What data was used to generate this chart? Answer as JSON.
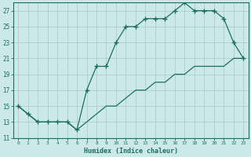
{
  "xlabel": "Humidex (Indice chaleur)",
  "x_upper": [
    0,
    1,
    2,
    3,
    4,
    5,
    6,
    7,
    8,
    9,
    10,
    11,
    12,
    13,
    14,
    15,
    16,
    17,
    18,
    19,
    20,
    21,
    22,
    23
  ],
  "y_upper": [
    15,
    14,
    13,
    13,
    13,
    13,
    12,
    17,
    20,
    20,
    23,
    25,
    25,
    26,
    26,
    26,
    27,
    28,
    27,
    27,
    27,
    26,
    23,
    21
  ],
  "x_lower": [
    0,
    1,
    2,
    3,
    4,
    5,
    6,
    7,
    8,
    9,
    10,
    11,
    12,
    13,
    14,
    15,
    16,
    17,
    18,
    19,
    20,
    21,
    22,
    23
  ],
  "y_lower": [
    15,
    14,
    13,
    13,
    13,
    13,
    12,
    13,
    14,
    15,
    15,
    16,
    17,
    17,
    18,
    18,
    19,
    19,
    20,
    20,
    20,
    20,
    21,
    21
  ],
  "line_color": "#1a7060",
  "bg_color": "#cce8e8",
  "grid_color": "#aacece",
  "tick_color": "#1a7060",
  "ylim": [
    11,
    28
  ],
  "yticks": [
    11,
    13,
    15,
    17,
    19,
    21,
    23,
    25,
    27
  ],
  "xlim": [
    -0.5,
    23.5
  ]
}
